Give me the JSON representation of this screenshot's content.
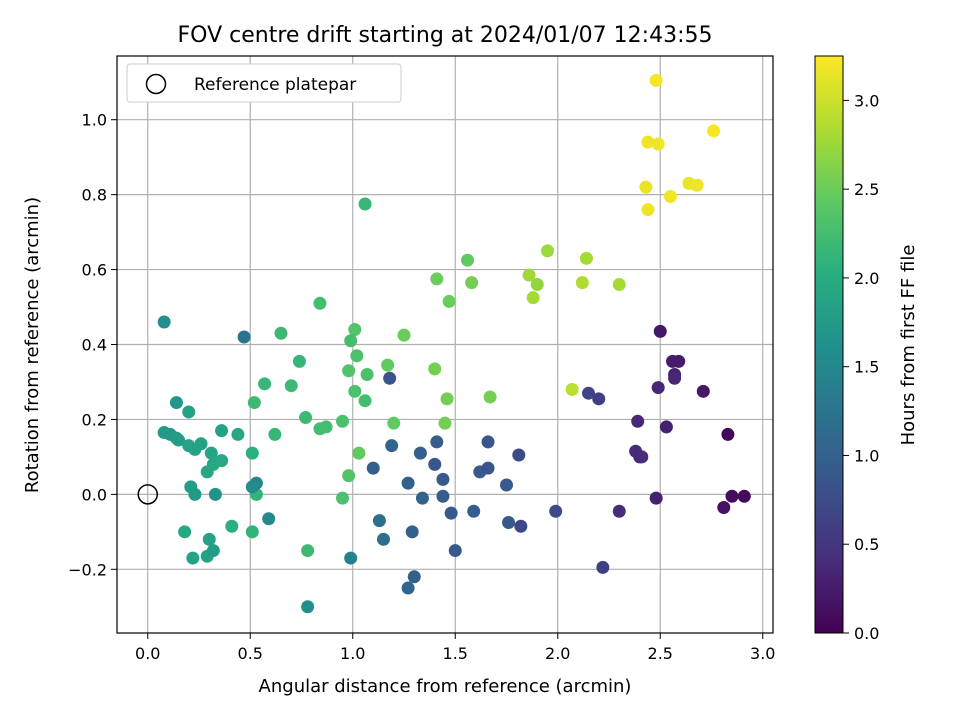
{
  "chart_data": {
    "type": "scatter",
    "title": "FOV centre drift starting at 2024/01/07 12:43:55",
    "xlabel": "Angular distance from reference (arcmin)",
    "ylabel": "Rotation from reference (arcmin)",
    "xlim": [
      -0.15,
      3.05
    ],
    "ylim": [
      -0.37,
      1.17
    ],
    "xticks": [
      "0.0",
      "0.5",
      "1.0",
      "1.5",
      "2.0",
      "2.5",
      "3.0"
    ],
    "yticks": [
      "−0.2",
      "0.0",
      "0.2",
      "0.4",
      "0.6",
      "0.8",
      "1.0"
    ],
    "grid": true,
    "legend": {
      "placement": "top-left",
      "entries": [
        "Reference platepar"
      ]
    },
    "reference_point": {
      "x": 0.0,
      "y": 0.0
    },
    "colorbar": {
      "label": "Hours from first FF file",
      "range": [
        0.0,
        3.25
      ],
      "ticks": [
        "0.0",
        "0.5",
        "1.0",
        "1.5",
        "2.0",
        "2.5",
        "3.0"
      ],
      "colormap": "viridis"
    },
    "series": [
      {
        "points": [
          {
            "x": 2.48,
            "y": 1.105,
            "t": 3.2
          },
          {
            "x": 2.44,
            "y": 0.94,
            "t": 3.18
          },
          {
            "x": 2.49,
            "y": 0.935,
            "t": 3.17
          },
          {
            "x": 2.76,
            "y": 0.97,
            "t": 3.22
          },
          {
            "x": 2.43,
            "y": 0.82,
            "t": 3.15
          },
          {
            "x": 2.64,
            "y": 0.83,
            "t": 3.16
          },
          {
            "x": 2.68,
            "y": 0.825,
            "t": 3.18
          },
          {
            "x": 2.55,
            "y": 0.795,
            "t": 3.19
          },
          {
            "x": 2.44,
            "y": 0.76,
            "t": 3.18
          },
          {
            "x": 1.95,
            "y": 0.65,
            "t": 2.75
          },
          {
            "x": 2.14,
            "y": 0.63,
            "t": 2.8
          },
          {
            "x": 1.86,
            "y": 0.585,
            "t": 2.78
          },
          {
            "x": 1.9,
            "y": 0.56,
            "t": 2.7
          },
          {
            "x": 2.12,
            "y": 0.565,
            "t": 2.85
          },
          {
            "x": 2.3,
            "y": 0.56,
            "t": 2.8
          },
          {
            "x": 1.88,
            "y": 0.525,
            "t": 2.8
          },
          {
            "x": 2.07,
            "y": 0.28,
            "t": 2.9
          },
          {
            "x": 1.56,
            "y": 0.625,
            "t": 2.45
          },
          {
            "x": 1.58,
            "y": 0.565,
            "t": 2.55
          },
          {
            "x": 1.47,
            "y": 0.515,
            "t": 2.5
          },
          {
            "x": 1.41,
            "y": 0.575,
            "t": 2.5
          },
          {
            "x": 1.4,
            "y": 0.335,
            "t": 2.55
          },
          {
            "x": 1.46,
            "y": 0.255,
            "t": 2.55
          },
          {
            "x": 1.67,
            "y": 0.26,
            "t": 2.55
          },
          {
            "x": 1.45,
            "y": 0.19,
            "t": 2.55
          },
          {
            "x": 1.25,
            "y": 0.425,
            "t": 2.5
          },
          {
            "x": 1.17,
            "y": 0.345,
            "t": 2.45
          },
          {
            "x": 1.2,
            "y": 0.19,
            "t": 2.45
          },
          {
            "x": 1.03,
            "y": 0.11,
            "t": 2.45
          },
          {
            "x": 0.98,
            "y": 0.05,
            "t": 2.35
          },
          {
            "x": 1.06,
            "y": 0.775,
            "t": 2.15
          },
          {
            "x": 1.01,
            "y": 0.44,
            "t": 2.35
          },
          {
            "x": 0.99,
            "y": 0.41,
            "t": 2.25
          },
          {
            "x": 1.02,
            "y": 0.37,
            "t": 2.3
          },
          {
            "x": 0.98,
            "y": 0.33,
            "t": 2.35
          },
          {
            "x": 1.07,
            "y": 0.32,
            "t": 2.3
          },
          {
            "x": 1.01,
            "y": 0.275,
            "t": 2.3
          },
          {
            "x": 1.06,
            "y": 0.25,
            "t": 2.25
          },
          {
            "x": 0.95,
            "y": 0.195,
            "t": 2.3
          },
          {
            "x": 0.95,
            "y": -0.01,
            "t": 2.3
          },
          {
            "x": 0.84,
            "y": 0.51,
            "t": 2.25
          },
          {
            "x": 0.65,
            "y": 0.43,
            "t": 2.2
          },
          {
            "x": 0.74,
            "y": 0.355,
            "t": 2.15
          },
          {
            "x": 0.7,
            "y": 0.29,
            "t": 2.2
          },
          {
            "x": 0.77,
            "y": 0.205,
            "t": 2.2
          },
          {
            "x": 0.84,
            "y": 0.175,
            "t": 2.25
          },
          {
            "x": 0.87,
            "y": 0.18,
            "t": 2.25
          },
          {
            "x": 0.78,
            "y": -0.15,
            "t": 2.2
          },
          {
            "x": 0.57,
            "y": 0.295,
            "t": 2.15
          },
          {
            "x": 0.52,
            "y": 0.245,
            "t": 2.2
          },
          {
            "x": 0.62,
            "y": 0.16,
            "t": 2.15
          },
          {
            "x": 0.51,
            "y": 0.11,
            "t": 2.05
          },
          {
            "x": 0.53,
            "y": 0.0,
            "t": 2.1
          },
          {
            "x": 0.51,
            "y": -0.1,
            "t": 2.1
          },
          {
            "x": 0.41,
            "y": -0.085,
            "t": 2.05
          },
          {
            "x": 0.44,
            "y": 0.16,
            "t": 1.95
          },
          {
            "x": 0.36,
            "y": 0.17,
            "t": 1.85
          },
          {
            "x": 0.36,
            "y": 0.09,
            "t": 1.95
          },
          {
            "x": 0.31,
            "y": 0.11,
            "t": 1.9
          },
          {
            "x": 0.32,
            "y": 0.08,
            "t": 1.95
          },
          {
            "x": 0.29,
            "y": 0.06,
            "t": 1.95
          },
          {
            "x": 0.26,
            "y": 0.135,
            "t": 1.85
          },
          {
            "x": 0.23,
            "y": 0.12,
            "t": 1.85
          },
          {
            "x": 0.2,
            "y": 0.13,
            "t": 1.85
          },
          {
            "x": 0.2,
            "y": 0.22,
            "t": 1.85
          },
          {
            "x": 0.14,
            "y": 0.15,
            "t": 1.75
          },
          {
            "x": 0.11,
            "y": 0.16,
            "t": 1.75
          },
          {
            "x": 0.08,
            "y": 0.165,
            "t": 1.75
          },
          {
            "x": 0.15,
            "y": 0.145,
            "t": 1.8
          },
          {
            "x": 0.14,
            "y": 0.245,
            "t": 1.7
          },
          {
            "x": 0.08,
            "y": 0.46,
            "t": 1.6
          },
          {
            "x": 0.21,
            "y": 0.02,
            "t": 1.8
          },
          {
            "x": 0.23,
            "y": 0.0,
            "t": 1.75
          },
          {
            "x": 0.33,
            "y": 0.0,
            "t": 1.65
          },
          {
            "x": 0.18,
            "y": -0.1,
            "t": 1.95
          },
          {
            "x": 0.22,
            "y": -0.17,
            "t": 1.85
          },
          {
            "x": 0.29,
            "y": -0.165,
            "t": 1.85
          },
          {
            "x": 0.3,
            "y": -0.12,
            "t": 1.85
          },
          {
            "x": 0.32,
            "y": -0.15,
            "t": 1.8
          },
          {
            "x": 0.53,
            "y": 0.03,
            "t": 1.5
          },
          {
            "x": 0.51,
            "y": 0.02,
            "t": 1.55
          },
          {
            "x": 0.59,
            "y": -0.065,
            "t": 1.55
          },
          {
            "x": 0.47,
            "y": 0.42,
            "t": 1.25
          },
          {
            "x": 0.78,
            "y": -0.3,
            "t": 1.6
          },
          {
            "x": 0.99,
            "y": -0.17,
            "t": 1.4
          },
          {
            "x": 1.18,
            "y": 0.31,
            "t": 0.85
          },
          {
            "x": 1.19,
            "y": 0.13,
            "t": 1.05
          },
          {
            "x": 1.1,
            "y": 0.07,
            "t": 1.0
          },
          {
            "x": 1.13,
            "y": -0.07,
            "t": 1.15
          },
          {
            "x": 1.15,
            "y": -0.12,
            "t": 1.15
          },
          {
            "x": 1.27,
            "y": 0.03,
            "t": 1.0
          },
          {
            "x": 1.33,
            "y": 0.11,
            "t": 1.0
          },
          {
            "x": 1.34,
            "y": -0.01,
            "t": 1.05
          },
          {
            "x": 1.29,
            "y": -0.1,
            "t": 1.0
          },
          {
            "x": 1.3,
            "y": -0.22,
            "t": 1.0
          },
          {
            "x": 1.27,
            "y": -0.25,
            "t": 1.05
          },
          {
            "x": 1.41,
            "y": 0.14,
            "t": 0.95
          },
          {
            "x": 1.4,
            "y": 0.08,
            "t": 0.85
          },
          {
            "x": 1.44,
            "y": 0.04,
            "t": 0.9
          },
          {
            "x": 1.44,
            "y": -0.005,
            "t": 0.95
          },
          {
            "x": 1.48,
            "y": -0.05,
            "t": 0.9
          },
          {
            "x": 1.5,
            "y": -0.15,
            "t": 0.9
          },
          {
            "x": 1.59,
            "y": -0.045,
            "t": 0.95
          },
          {
            "x": 1.62,
            "y": 0.06,
            "t": 0.9
          },
          {
            "x": 1.66,
            "y": 0.14,
            "t": 0.85
          },
          {
            "x": 1.66,
            "y": 0.07,
            "t": 0.85
          },
          {
            "x": 1.75,
            "y": 0.025,
            "t": 0.9
          },
          {
            "x": 1.76,
            "y": -0.075,
            "t": 0.9
          },
          {
            "x": 1.81,
            "y": 0.105,
            "t": 0.75
          },
          {
            "x": 1.82,
            "y": -0.085,
            "t": 0.7
          },
          {
            "x": 1.99,
            "y": -0.045,
            "t": 0.75
          },
          {
            "x": 2.15,
            "y": 0.27,
            "t": 0.65
          },
          {
            "x": 2.2,
            "y": 0.255,
            "t": 0.6
          },
          {
            "x": 2.22,
            "y": -0.195,
            "t": 0.6
          },
          {
            "x": 2.3,
            "y": -0.045,
            "t": 0.4
          },
          {
            "x": 2.38,
            "y": 0.115,
            "t": 0.4
          },
          {
            "x": 2.39,
            "y": 0.195,
            "t": 0.35
          },
          {
            "x": 2.4,
            "y": 0.1,
            "t": 0.35
          },
          {
            "x": 2.41,
            "y": 0.1,
            "t": 0.4
          },
          {
            "x": 2.48,
            "y": -0.01,
            "t": 0.3
          },
          {
            "x": 2.49,
            "y": 0.285,
            "t": 0.35
          },
          {
            "x": 2.5,
            "y": 0.435,
            "t": 0.2
          },
          {
            "x": 2.53,
            "y": 0.18,
            "t": 0.3
          },
          {
            "x": 2.56,
            "y": 0.355,
            "t": 0.25
          },
          {
            "x": 2.57,
            "y": 0.32,
            "t": 0.3
          },
          {
            "x": 2.57,
            "y": 0.31,
            "t": 0.35
          },
          {
            "x": 2.59,
            "y": 0.355,
            "t": 0.25
          },
          {
            "x": 2.71,
            "y": 0.275,
            "t": 0.2
          },
          {
            "x": 2.81,
            "y": -0.035,
            "t": 0.15
          },
          {
            "x": 2.83,
            "y": 0.16,
            "t": 0.05
          },
          {
            "x": 2.85,
            "y": -0.005,
            "t": 0.1
          },
          {
            "x": 2.91,
            "y": -0.005,
            "t": 0.08
          }
        ]
      }
    ]
  }
}
